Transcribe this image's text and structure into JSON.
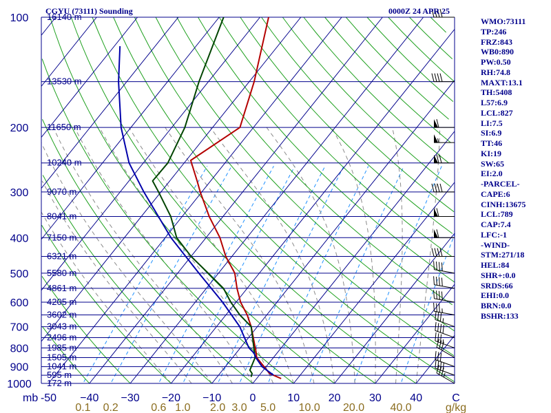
{
  "header": {
    "title_left": "CGYU (73111) Sounding",
    "title_right": "0000Z 24 APR 25"
  },
  "indices": [
    "WMO:73111",
    "TP:246",
    "FRZ:843",
    "WB0:890",
    "PW:0.50",
    "RH:74.8",
    "MAXT:13.1",
    "TH:5408",
    "L57:6.9",
    "LCL:827",
    "LI:7.5",
    "SI:6.9",
    "TT:46",
    "KI:19",
    "SW:65",
    "EI:2.0",
    "-PARCEL-",
    "CAPE:6",
    "CINH:13675",
    "LCL:789",
    "CAP:7.4",
    "LFC:-1",
    "-WIND-",
    "STM:271/18",
    "HEL:84",
    "SHR+:0.0",
    "SRDS:66",
    "EHI:0.0",
    "BRN:0.0",
    "BSHR:133"
  ],
  "colors": {
    "text": "#00008b",
    "isobar": "#00008b",
    "isotherm": "#00008b",
    "dry_adiabat": "#1ea01e",
    "mixing_ratio": "#1e90ff",
    "moist_adiabat": "#8a8a8a",
    "temperature": "#b40000",
    "dewpoint": "#004400",
    "parcel": "#0000aa",
    "wind": "#000000"
  },
  "chart_data": {
    "type": "line",
    "title": "CGYU (73111) Sounding",
    "subtitle": "0000Z 24 APR 25",
    "y_axis_unit": "mb",
    "x_axis_unit": "C",
    "mixing_ratio_unit": "g/kg",
    "pressure_ticks": [
      100,
      200,
      300,
      400,
      500,
      600,
      700,
      800,
      900,
      1000
    ],
    "temperature_ticks": [
      -50,
      -40,
      -30,
      -20,
      -10,
      0,
      10,
      20,
      30,
      40
    ],
    "temperature_tick_labels": [
      "-50",
      "−40",
      "−30",
      "−20",
      "−10",
      "0",
      "10",
      "20",
      "30",
      "40"
    ],
    "mixing_ratio_labels": [
      "0.1",
      "0.2",
      "0.6",
      "1.0",
      "2.0",
      "3.0",
      "5.0",
      "10.0",
      "20.0",
      "40.0"
    ],
    "mixing_ratio_values": [
      0.1,
      0.2,
      0.6,
      1.0,
      2.0,
      3.0,
      5.0,
      10.0,
      20.0,
      40.0
    ],
    "xlim": [
      -50,
      50
    ],
    "ylim": [
      1000,
      100
    ],
    "height_labels": [
      {
        "p": 100,
        "label": "16140 m"
      },
      {
        "p": 150,
        "label": "13530 m"
      },
      {
        "p": 200,
        "label": "11650 m"
      },
      {
        "p": 250,
        "label": "10240 m"
      },
      {
        "p": 300,
        "label": "9070 m"
      },
      {
        "p": 350,
        "label": "8041 m"
      },
      {
        "p": 400,
        "label": "7150 m"
      },
      {
        "p": 450,
        "label": "6321 m"
      },
      {
        "p": 500,
        "label": "5580 m"
      },
      {
        "p": 550,
        "label": "4861 m"
      },
      {
        "p": 600,
        "label": "4205 m"
      },
      {
        "p": 650,
        "label": "3602 m"
      },
      {
        "p": 700,
        "label": "3043 m"
      },
      {
        "p": 750,
        "label": "2496 m"
      },
      {
        "p": 800,
        "label": "1985 m"
      },
      {
        "p": 850,
        "label": "1505 m"
      },
      {
        "p": 900,
        "label": "1041 m"
      },
      {
        "p": 950,
        "label": "595 m"
      },
      {
        "p": 1000,
        "label": "172 m"
      }
    ],
    "series": [
      {
        "key": "temperature",
        "points": [
          [
            1005,
            9.5
          ],
          [
            970,
            6.0
          ],
          [
            940,
            2.2
          ],
          [
            850,
            -4.1
          ],
          [
            820,
            -5.4
          ],
          [
            700,
            -11.5
          ],
          [
            650,
            -14.8
          ],
          [
            600,
            -18.9
          ],
          [
            550,
            -22.5
          ],
          [
            500,
            -26.0
          ],
          [
            450,
            -31.5
          ],
          [
            400,
            -36.6
          ],
          [
            350,
            -43.4
          ],
          [
            300,
            -50.4
          ],
          [
            280,
            -53.3
          ],
          [
            246,
            -58.9
          ],
          [
            200,
            -53.3
          ],
          [
            150,
            -58.8
          ],
          [
            100,
            -67.9
          ]
        ]
      },
      {
        "key": "dewpoint",
        "points": [
          [
            1005,
            -0.9
          ],
          [
            960,
            -1.7
          ],
          [
            940,
            -2.1
          ],
          [
            920,
            -3.3
          ],
          [
            850,
            -4.5
          ],
          [
            700,
            -11.5
          ],
          [
            650,
            -16.6
          ],
          [
            600,
            -21.3
          ],
          [
            550,
            -25.8
          ],
          [
            500,
            -32.5
          ],
          [
            450,
            -40.0
          ],
          [
            400,
            -47.2
          ],
          [
            350,
            -52.8
          ],
          [
            300,
            -60.6
          ],
          [
            280,
            -64.2
          ],
          [
            250,
            -64.0
          ],
          [
            200,
            -66.8
          ],
          [
            150,
            -72.3
          ],
          [
            100,
            -78.9
          ]
        ]
      },
      {
        "key": "parcel",
        "points": [
          [
            1005,
            9.2
          ],
          [
            950,
            3.5
          ],
          [
            900,
            -1.0
          ],
          [
            850,
            -4.3
          ],
          [
            827,
            -5.6
          ],
          [
            800,
            -7.9
          ],
          [
            700,
            -14.3
          ],
          [
            600,
            -23.3
          ],
          [
            500,
            -34.8
          ],
          [
            400,
            -48.6
          ],
          [
            300,
            -64.2
          ],
          [
            250,
            -73.5
          ],
          [
            200,
            -82.4
          ],
          [
            150,
            -92.0
          ],
          [
            120,
            -98.6
          ]
        ]
      }
    ],
    "winds": [
      {
        "p": 1000,
        "dir": 300,
        "spd": 35
      },
      {
        "p": 950,
        "dir": 290,
        "spd": 40
      },
      {
        "p": 900,
        "dir": 290,
        "spd": 30
      },
      {
        "p": 850,
        "dir": 300,
        "spd": 30
      },
      {
        "p": 800,
        "dir": 290,
        "spd": 35
      },
      {
        "p": 750,
        "dir": 290,
        "spd": 40
      },
      {
        "p": 700,
        "dir": 290,
        "spd": 35
      },
      {
        "p": 650,
        "dir": 280,
        "spd": 35
      },
      {
        "p": 600,
        "dir": 280,
        "spd": 40
      },
      {
        "p": 550,
        "dir": 280,
        "spd": 40
      },
      {
        "p": 500,
        "dir": 280,
        "spd": 40
      },
      {
        "p": 450,
        "dir": 270,
        "spd": 40
      },
      {
        "p": 400,
        "dir": 270,
        "spd": 60
      },
      {
        "p": 350,
        "dir": 270,
        "spd": 60
      },
      {
        "p": 300,
        "dir": 270,
        "spd": 40
      },
      {
        "p": 250,
        "dir": 270,
        "spd": 70
      },
      {
        "p": 220,
        "dir": 270,
        "spd": 55
      },
      {
        "p": 200,
        "dir": 270,
        "spd": 60
      },
      {
        "p": 150,
        "dir": 270,
        "spd": 40
      },
      {
        "p": 100,
        "dir": 270,
        "spd": 40
      }
    ]
  }
}
